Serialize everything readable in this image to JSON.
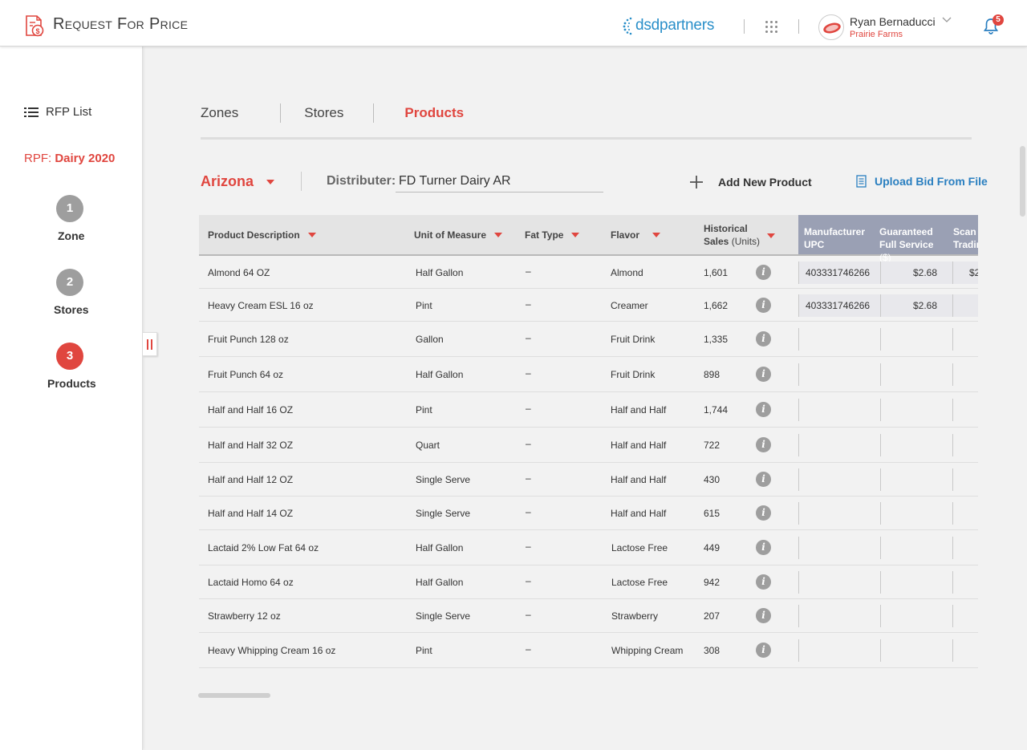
{
  "header": {
    "title": "Request For Price",
    "brand": "dsdpartners",
    "user_name": "Ryan Bernaducci",
    "user_org": "Prairie Farms",
    "notification_count": "5",
    "accent_color": "#e0463f"
  },
  "sidebar": {
    "rfp_list_label": "RFP List",
    "rpf_prefix": "RPF: ",
    "rpf_name": "Dairy 2020",
    "steps": [
      {
        "number": "1",
        "label": "Zone"
      },
      {
        "number": "2",
        "label": "Stores"
      },
      {
        "number": "3",
        "label": "Products"
      }
    ]
  },
  "tabs": [
    "Zones",
    "Stores",
    "Products"
  ],
  "filters": {
    "state": "Arizona",
    "distributer_label": "Distributer:",
    "distributer_value": "FD Turner Dairy AR",
    "add_product_label": "Add New Product",
    "upload_label": "Upload Bid From File"
  },
  "table": {
    "headers": {
      "product": "Product Description",
      "unit": "Unit of Measure",
      "fat": "Fat Type",
      "flavor": "Flavor",
      "hist_line1": "Historical",
      "hist_line2": "Sales",
      "hist_units": "(Units)",
      "upc_line1": "Manufacturer",
      "upc_line2": "UPC",
      "gfs_line1": "Guaranteed",
      "gfs_line2": "Full Service",
      "gfs_paren": "($)",
      "scan_line1": "Scan B",
      "scan_line2": "Tradin"
    },
    "rows": [
      {
        "product": "Almond 64 OZ",
        "unit": "Half Gallon",
        "fat": "–",
        "flavor": "Almond",
        "sales": "1,601",
        "upc": "403331746266",
        "gfs": "$2.68",
        "scan": "$2"
      },
      {
        "product": "Heavy Cream ESL 16 oz",
        "unit": "Pint",
        "fat": "–",
        "flavor": "Creamer",
        "sales": "1,662",
        "upc": "403331746266",
        "gfs": "$2.68",
        "scan": ""
      },
      {
        "product": "Fruit Punch  128 oz",
        "unit": "Gallon",
        "fat": "–",
        "flavor": "Fruit Drink",
        "sales": "1,335",
        "upc": "",
        "gfs": "",
        "scan": ""
      },
      {
        "product": "Fruit Punch 64 oz",
        "unit": "Half Gallon",
        "fat": "–",
        "flavor": "Fruit Drink",
        "sales": "898",
        "upc": "",
        "gfs": "",
        "scan": ""
      },
      {
        "product": "Half and Half 16 OZ",
        "unit": "Pint",
        "fat": "–",
        "flavor": "Half and Half",
        "sales": "1,744",
        "upc": "",
        "gfs": "",
        "scan": ""
      },
      {
        "product": "Half and Half 32 OZ",
        "unit": "Quart",
        "fat": "–",
        "flavor": "Half and Half",
        "sales": "722",
        "upc": "",
        "gfs": "",
        "scan": ""
      },
      {
        "product": "Half and Half 12 OZ",
        "unit": "Single Serve",
        "fat": "–",
        "flavor": "Half and Half",
        "sales": "430",
        "upc": "",
        "gfs": "",
        "scan": ""
      },
      {
        "product": "Half and Half 14 OZ",
        "unit": "Single Serve",
        "fat": "–",
        "flavor": "Half and Half",
        "sales": "615",
        "upc": "",
        "gfs": "",
        "scan": ""
      },
      {
        "product": "Lactaid 2% Low Fat 64 oz",
        "unit": "Half Gallon",
        "fat": "–",
        "flavor": "Lactose Free",
        "sales": "449",
        "upc": "",
        "gfs": "",
        "scan": ""
      },
      {
        "product": "Lactaid Homo 64 oz",
        "unit": "Half Gallon",
        "fat": "–",
        "flavor": "Lactose Free",
        "sales": "942",
        "upc": "",
        "gfs": "",
        "scan": ""
      },
      {
        "product": "Strawberry 12 oz",
        "unit": "Single Serve",
        "fat": "–",
        "flavor": "Strawberry",
        "sales": "207",
        "upc": "",
        "gfs": "",
        "scan": ""
      },
      {
        "product": "Heavy Whipping Cream 16 oz",
        "unit": "Pint",
        "fat": "–",
        "flavor": "Whipping Cream",
        "sales": "308",
        "upc": "",
        "gfs": "",
        "scan": ""
      }
    ]
  }
}
